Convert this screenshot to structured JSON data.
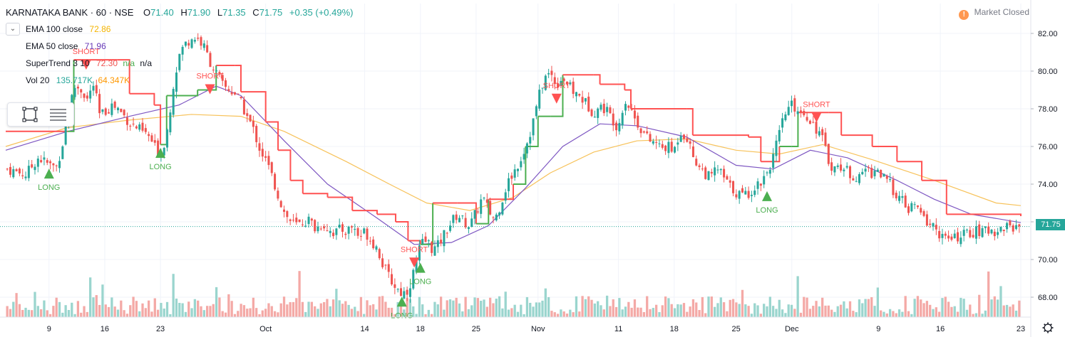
{
  "header": {
    "symbol": "KARNATAKA BANK · 60 · NSE",
    "open_label": "O",
    "open": "71.40",
    "high_label": "H",
    "high": "71.90",
    "low_label": "L",
    "low": "71.35",
    "close_label": "C",
    "close": "71.75",
    "change": "+0.35 (+0.49%)",
    "market_status": "Market Closed",
    "market_icon": "!"
  },
  "indicators": [
    {
      "name": "EMA 100 close",
      "values": [
        "72.86"
      ],
      "color": "#f4b400"
    },
    {
      "name": "EMA 50 close",
      "values": [
        "71.96"
      ],
      "color": "#673ab7"
    },
    {
      "name": "SuperTrend 3 10",
      "values": [
        "72.30",
        "n/a",
        "n/a"
      ],
      "colors": [
        "#ef5350",
        "#4caf50",
        "#131722"
      ]
    },
    {
      "name": "Vol 20",
      "values": [
        "135.717K",
        "64.347K"
      ],
      "colors": [
        "#26a69a",
        "#ff9800"
      ]
    }
  ],
  "last_price": "71.75",
  "colors": {
    "up": "#26a69a",
    "down": "#ef5350",
    "supertrend_down": "#ff5252",
    "supertrend_up": "#4caf50",
    "ema50": "#7e57c2",
    "ema100": "#f7c25a",
    "vol_up": "#9ad5ce",
    "vol_down": "#f4a9a6",
    "grid": "#f0f3fa",
    "axis_text": "#131722"
  },
  "chart_data": {
    "type": "candlestick",
    "symbol": "KARNATAKA BANK",
    "timeframe": "60",
    "exchange": "NSE",
    "x_ticks": [
      "9",
      "16",
      "23",
      "Oct",
      "14",
      "18",
      "25",
      "Nov",
      "11",
      "18",
      "25",
      "Dec",
      "9",
      "16",
      "23"
    ],
    "y_ticks": [
      "68.00",
      "70.00",
      "72.00",
      "74.00",
      "76.00",
      "78.00",
      "80.00",
      "82.00"
    ],
    "ylim": [
      67.2,
      83.2
    ],
    "x_range": [
      0,
      168
    ],
    "close_path": [
      [
        0,
        74.8
      ],
      [
        3,
        74.5
      ],
      [
        5,
        75.4
      ],
      [
        7,
        75.0
      ],
      [
        8,
        74.9
      ],
      [
        9,
        76.2
      ],
      [
        10,
        78.0
      ],
      [
        11,
        79.2
      ],
      [
        12,
        79.0
      ],
      [
        13,
        78.5
      ],
      [
        14,
        79.3
      ],
      [
        15,
        77.6
      ],
      [
        16,
        77.9
      ],
      [
        17,
        78.2
      ],
      [
        18,
        78.0
      ],
      [
        19,
        77.6
      ],
      [
        20,
        77.2
      ],
      [
        21,
        77.0
      ],
      [
        23,
        76.5
      ],
      [
        24,
        75.9
      ],
      [
        25,
        75.6
      ],
      [
        26,
        77.0
      ],
      [
        27,
        79.5
      ],
      [
        28,
        81.0
      ],
      [
        29,
        81.5
      ],
      [
        30,
        81.8
      ],
      [
        31,
        81.7
      ],
      [
        32,
        81.2
      ],
      [
        33,
        80.4
      ],
      [
        34,
        79.8
      ],
      [
        35,
        79.2
      ],
      [
        36,
        79.0
      ],
      [
        37,
        78.8
      ],
      [
        38,
        78.2
      ],
      [
        39,
        77.5
      ],
      [
        40,
        76.8
      ],
      [
        41,
        75.8
      ],
      [
        42,
        75.2
      ],
      [
        43,
        74.3
      ],
      [
        44,
        73.3
      ],
      [
        45,
        72.4
      ],
      [
        46,
        72.0
      ],
      [
        47,
        71.8
      ],
      [
        48,
        72.0
      ],
      [
        49,
        72.1
      ],
      [
        50,
        71.6
      ],
      [
        51,
        71.9
      ],
      [
        53,
        71.4
      ],
      [
        54,
        71.6
      ],
      [
        55,
        71.5
      ],
      [
        56,
        71.8
      ],
      [
        57,
        71.2
      ],
      [
        58,
        71.5
      ],
      [
        59,
        71.0
      ],
      [
        60,
        70.6
      ],
      [
        61,
        69.6
      ],
      [
        62,
        69.0
      ],
      [
        63,
        68.5
      ],
      [
        64,
        68.2
      ],
      [
        65,
        68.4
      ],
      [
        66,
        69.5
      ],
      [
        67,
        70.8
      ],
      [
        68,
        71.0
      ],
      [
        69,
        70.5
      ],
      [
        70,
        70.8
      ],
      [
        71,
        71.5
      ],
      [
        72,
        72.0
      ],
      [
        73,
        72.4
      ],
      [
        74,
        72.0
      ],
      [
        75,
        71.8
      ],
      [
        76,
        72.5
      ],
      [
        77,
        73.3
      ],
      [
        78,
        72.6
      ],
      [
        79,
        72.1
      ],
      [
        80,
        73.0
      ],
      [
        81,
        74.0
      ],
      [
        82,
        74.6
      ],
      [
        83,
        75.2
      ],
      [
        84,
        76.0
      ],
      [
        85,
        77.0
      ],
      [
        86,
        78.5
      ],
      [
        87,
        79.6
      ],
      [
        88,
        79.9
      ],
      [
        89,
        79.3
      ],
      [
        90,
        79.7
      ],
      [
        91,
        79.2
      ],
      [
        92,
        78.8
      ],
      [
        93,
        78.6
      ],
      [
        94,
        78.2
      ],
      [
        95,
        77.8
      ],
      [
        96,
        78.1
      ],
      [
        97,
        78.0
      ],
      [
        98,
        77.5
      ],
      [
        99,
        77.0
      ],
      [
        100,
        78.5
      ],
      [
        101,
        78.0
      ],
      [
        102,
        77.3
      ],
      [
        103,
        76.8
      ],
      [
        104,
        76.3
      ],
      [
        105,
        76.2
      ],
      [
        106,
        75.9
      ],
      [
        107,
        76.0
      ],
      [
        108,
        75.7
      ],
      [
        109,
        76.8
      ],
      [
        110,
        76.6
      ],
      [
        111,
        75.6
      ],
      [
        112,
        75.0
      ],
      [
        113,
        74.6
      ],
      [
        114,
        74.3
      ],
      [
        115,
        74.9
      ],
      [
        116,
        74.4
      ],
      [
        117,
        73.9
      ],
      [
        118,
        73.6
      ],
      [
        119,
        73.4
      ],
      [
        120,
        73.5
      ],
      [
        121,
        73.8
      ],
      [
        122,
        74.1
      ],
      [
        123,
        74.6
      ],
      [
        124,
        75.3
      ],
      [
        125,
        76.5
      ],
      [
        126,
        77.7
      ],
      [
        127,
        78.2
      ],
      [
        128,
        78.0
      ],
      [
        129,
        77.8
      ],
      [
        130,
        77.5
      ],
      [
        131,
        77.0
      ],
      [
        132,
        76.5
      ],
      [
        133,
        75.3
      ],
      [
        134,
        74.8
      ],
      [
        135,
        75.0
      ],
      [
        136,
        74.7
      ],
      [
        137,
        74.5
      ],
      [
        138,
        74.2
      ],
      [
        139,
        74.9
      ],
      [
        140,
        74.6
      ],
      [
        141,
        74.8
      ],
      [
        142,
        74.3
      ],
      [
        143,
        74.0
      ],
      [
        144,
        73.5
      ],
      [
        145,
        73.1
      ],
      [
        146,
        72.6
      ],
      [
        147,
        72.9
      ],
      [
        148,
        72.4
      ],
      [
        149,
        72.0
      ],
      [
        150,
        71.8
      ],
      [
        151,
        71.4
      ],
      [
        152,
        71.1
      ],
      [
        153,
        71.0
      ],
      [
        154,
        71.2
      ],
      [
        155,
        71.3
      ],
      [
        156,
        71.4
      ],
      [
        157,
        71.5
      ],
      [
        158,
        71.4
      ],
      [
        159,
        71.6
      ],
      [
        160,
        71.5
      ],
      [
        161,
        71.6
      ],
      [
        162,
        71.8
      ],
      [
        163,
        71.7
      ],
      [
        164,
        71.75
      ]
    ],
    "series": [
      {
        "name": "EMA 100 close",
        "points": [
          [
            0,
            76.0
          ],
          [
            10,
            77.0
          ],
          [
            20,
            77.4
          ],
          [
            30,
            77.7
          ],
          [
            38,
            77.6
          ],
          [
            45,
            76.8
          ],
          [
            55,
            75.2
          ],
          [
            62,
            74.0
          ],
          [
            68,
            73.0
          ],
          [
            75,
            72.6
          ],
          [
            82,
            73.3
          ],
          [
            88,
            74.6
          ],
          [
            95,
            75.7
          ],
          [
            102,
            76.3
          ],
          [
            110,
            76.4
          ],
          [
            118,
            75.8
          ],
          [
            125,
            75.6
          ],
          [
            132,
            76.1
          ],
          [
            140,
            75.3
          ],
          [
            150,
            74.2
          ],
          [
            160,
            73.0
          ],
          [
            164,
            72.86
          ]
        ]
      },
      {
        "name": "EMA 50 close",
        "points": [
          [
            0,
            75.8
          ],
          [
            10,
            76.8
          ],
          [
            20,
            77.6
          ],
          [
            28,
            78.2
          ],
          [
            34,
            79.2
          ],
          [
            38,
            78.7
          ],
          [
            45,
            76.3
          ],
          [
            52,
            74.0
          ],
          [
            60,
            72.2
          ],
          [
            66,
            70.8
          ],
          [
            72,
            70.9
          ],
          [
            78,
            71.8
          ],
          [
            84,
            73.8
          ],
          [
            90,
            76.0
          ],
          [
            96,
            77.2
          ],
          [
            102,
            77.1
          ],
          [
            110,
            76.5
          ],
          [
            118,
            75.0
          ],
          [
            124,
            74.8
          ],
          [
            130,
            75.8
          ],
          [
            136,
            75.4
          ],
          [
            144,
            74.2
          ],
          [
            150,
            73.2
          ],
          [
            156,
            72.4
          ],
          [
            164,
            71.96
          ]
        ]
      },
      {
        "name": "SuperTrend 3 10",
        "points": [
          [
            0,
            76.8
          ],
          [
            10,
            76.8
          ],
          [
            11,
            80.6
          ],
          [
            18,
            80.6
          ],
          [
            20,
            78.8
          ],
          [
            24,
            78.2
          ],
          [
            25,
            76.1
          ],
          [
            26,
            78.7
          ],
          [
            31,
            79.0
          ],
          [
            33,
            79.0
          ],
          [
            34,
            80.3
          ],
          [
            37,
            80.3
          ],
          [
            38,
            78.9
          ],
          [
            42,
            77.3
          ],
          [
            44,
            75.8
          ],
          [
            46,
            74.2
          ],
          [
            48,
            73.5
          ],
          [
            52,
            73.3
          ],
          [
            56,
            72.6
          ],
          [
            60,
            72.4
          ],
          [
            63,
            72.0
          ],
          [
            65,
            71.0
          ],
          [
            67,
            70.8
          ],
          [
            69,
            73.0
          ],
          [
            73,
            73.0
          ],
          [
            76,
            71.9
          ],
          [
            78,
            73.2
          ],
          [
            82,
            74.0
          ],
          [
            84,
            76.0
          ],
          [
            86,
            77.6
          ],
          [
            88,
            77.6
          ],
          [
            90,
            79.8
          ],
          [
            95,
            79.8
          ],
          [
            96,
            79.3
          ],
          [
            100,
            79.0
          ],
          [
            101,
            78.0
          ],
          [
            110,
            78.0
          ],
          [
            111,
            76.6
          ],
          [
            120,
            76.5
          ],
          [
            122,
            75.2
          ],
          [
            125,
            76.0
          ],
          [
            127,
            76.0
          ],
          [
            128,
            77.8
          ],
          [
            133,
            77.8
          ],
          [
            135,
            76.6
          ],
          [
            140,
            76.0
          ],
          [
            144,
            75.2
          ],
          [
            148,
            74.2
          ],
          [
            152,
            72.4
          ],
          [
            164,
            72.3
          ]
        ]
      }
    ],
    "signals": [
      {
        "label": "LONG",
        "x": 7,
        "price": 74.6,
        "type": "long"
      },
      {
        "label": "SHORT",
        "x": 13,
        "price": 80.3,
        "type": "short"
      },
      {
        "label": "LONG",
        "x": 25,
        "price": 75.7,
        "type": "long"
      },
      {
        "label": "SHORT",
        "x": 33,
        "price": 79.0,
        "type": "short"
      },
      {
        "label": "LONG",
        "x": 64,
        "price": 67.8,
        "type": "long"
      },
      {
        "label": "SHORT",
        "x": 66,
        "price": 69.8,
        "type": "short"
      },
      {
        "label": "LONG",
        "x": 67,
        "price": 69.6,
        "type": "long"
      },
      {
        "label": "SHORT",
        "x": 89,
        "price": 78.5,
        "type": "short"
      },
      {
        "label": "LONG",
        "x": 123,
        "price": 73.4,
        "type": "long"
      },
      {
        "label": "SHORT",
        "x": 131,
        "price": 77.5,
        "type": "short"
      }
    ]
  }
}
